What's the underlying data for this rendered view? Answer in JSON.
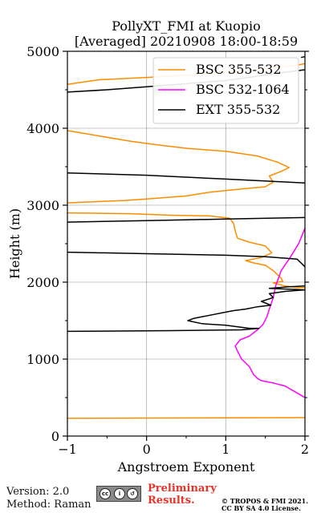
{
  "chart_data": {
    "type": "line",
    "title": "PollyXT_FMI at Kuopio",
    "subtitle": "[Averaged] 20210908 18:00-18:59",
    "xlabel": "Angstroem Exponent",
    "ylabel": "Height (m)",
    "xlim": [
      -1,
      2
    ],
    "ylim": [
      0,
      5000
    ],
    "xticks": [
      -1,
      0,
      1,
      2
    ],
    "yticks": [
      0,
      1000,
      2000,
      3000,
      4000,
      5000
    ],
    "grid": true,
    "legend_position": "top-right",
    "series": [
      {
        "name": "BSC 355-532",
        "color": "#ff8c00",
        "points": [
          [
            -1,
            230
          ],
          [
            2,
            240
          ],
          [
            null,
            null
          ],
          [
            -1,
            2900
          ],
          [
            -0.2,
            2890
          ],
          [
            0.3,
            2870
          ],
          [
            0.8,
            2860
          ],
          [
            1.05,
            2830
          ],
          [
            1.1,
            2760
          ],
          [
            1.12,
            2660
          ],
          [
            1.15,
            2570
          ],
          [
            1.3,
            2520
          ],
          [
            1.5,
            2470
          ],
          [
            1.58,
            2380
          ],
          [
            1.45,
            2320
          ],
          [
            1.25,
            2280
          ],
          [
            1.35,
            2250
          ],
          [
            1.5,
            2220
          ],
          [
            1.6,
            2150
          ],
          [
            1.7,
            2050
          ],
          [
            1.72,
            2010
          ],
          [
            1.6,
            1990
          ],
          [
            1.75,
            1950
          ],
          [
            1.9,
            1930
          ],
          [
            2,
            1930
          ],
          [
            null,
            null
          ],
          [
            -1,
            3030
          ],
          [
            -0.3,
            3060
          ],
          [
            0,
            3080
          ],
          [
            0.5,
            3120
          ],
          [
            0.8,
            3170
          ],
          [
            1.2,
            3210
          ],
          [
            1.5,
            3240
          ],
          [
            1.6,
            3300
          ],
          [
            1.55,
            3380
          ],
          [
            1.7,
            3440
          ],
          [
            1.8,
            3490
          ],
          [
            1.65,
            3560
          ],
          [
            1.4,
            3640
          ],
          [
            1.0,
            3700
          ],
          [
            0.5,
            3740
          ],
          [
            0.1,
            3790
          ],
          [
            -0.2,
            3830
          ],
          [
            -0.6,
            3900
          ],
          [
            -1,
            3970
          ],
          [
            null,
            null
          ],
          [
            -1,
            4570
          ],
          [
            -0.6,
            4630
          ],
          [
            0,
            4660
          ],
          [
            0.7,
            4700
          ],
          [
            1.4,
            4760
          ],
          [
            1.9,
            4820
          ],
          [
            2,
            4840
          ]
        ]
      },
      {
        "name": "BSC 532-1064",
        "color": "#ff00ff",
        "points": [
          [
            2,
            500
          ],
          [
            1.9,
            560
          ],
          [
            1.75,
            650
          ],
          [
            1.6,
            690
          ],
          [
            1.45,
            720
          ],
          [
            1.4,
            750
          ],
          [
            1.35,
            800
          ],
          [
            1.3,
            900
          ],
          [
            1.2,
            1000
          ],
          [
            1.15,
            1100
          ],
          [
            1.12,
            1170
          ],
          [
            1.18,
            1250
          ],
          [
            1.3,
            1300
          ],
          [
            1.4,
            1380
          ],
          [
            1.47,
            1450
          ],
          [
            1.52,
            1550
          ],
          [
            1.55,
            1650
          ],
          [
            1.6,
            1800
          ],
          [
            1.63,
            1950
          ],
          [
            1.7,
            2150
          ],
          [
            1.8,
            2300
          ],
          [
            1.92,
            2500
          ],
          [
            2,
            2700
          ]
        ]
      },
      {
        "name": "EXT 355-532",
        "color": "#000000",
        "points": [
          [
            -1,
            1360
          ],
          [
            0.3,
            1370
          ],
          [
            1.2,
            1380
          ],
          [
            1.42,
            1400
          ],
          [
            1.3,
            1400
          ],
          [
            1.0,
            1440
          ],
          [
            0.7,
            1460
          ],
          [
            0.52,
            1500
          ],
          [
            0.6,
            1530
          ],
          [
            0.85,
            1580
          ],
          [
            1.0,
            1610
          ],
          [
            1.1,
            1630
          ],
          [
            1.25,
            1650
          ],
          [
            1.4,
            1680
          ],
          [
            1.57,
            1700
          ],
          [
            1.45,
            1750
          ],
          [
            1.6,
            1800
          ],
          [
            1.55,
            1850
          ],
          [
            1.75,
            1880
          ],
          [
            2,
            1900
          ],
          [
            1.55,
            1920
          ],
          [
            1.8,
            1940
          ],
          [
            2,
            1950
          ],
          [
            null,
            null
          ],
          [
            -1,
            2390
          ],
          [
            0,
            2370
          ],
          [
            1.0,
            2350
          ],
          [
            1.5,
            2330
          ],
          [
            1.9,
            2300
          ],
          [
            1.95,
            2250
          ],
          [
            2,
            2200
          ],
          [
            null,
            null
          ],
          [
            -1,
            2780
          ],
          [
            0,
            2800
          ],
          [
            1.0,
            2820
          ],
          [
            2,
            2840
          ],
          [
            null,
            null
          ],
          [
            -1,
            3420
          ],
          [
            0,
            3390
          ],
          [
            1,
            3340
          ],
          [
            2,
            3290
          ],
          [
            null,
            null
          ],
          [
            -1,
            4470
          ],
          [
            -0.5,
            4500
          ],
          [
            0,
            4540
          ],
          [
            1,
            4620
          ],
          [
            1.7,
            4720
          ],
          [
            2,
            4760
          ],
          [
            null,
            null
          ],
          [
            1.95,
            4920
          ],
          [
            2,
            4930
          ]
        ]
      }
    ]
  },
  "footer": {
    "version": "Version: 2.0",
    "method": "Method: Raman",
    "preliminary_line1": "Preliminary",
    "preliminary_line2": "Results.",
    "copyright_line1": "© TROPOS & FMI 2021.",
    "copyright_line2": "CC BY SA 4.0 License."
  }
}
